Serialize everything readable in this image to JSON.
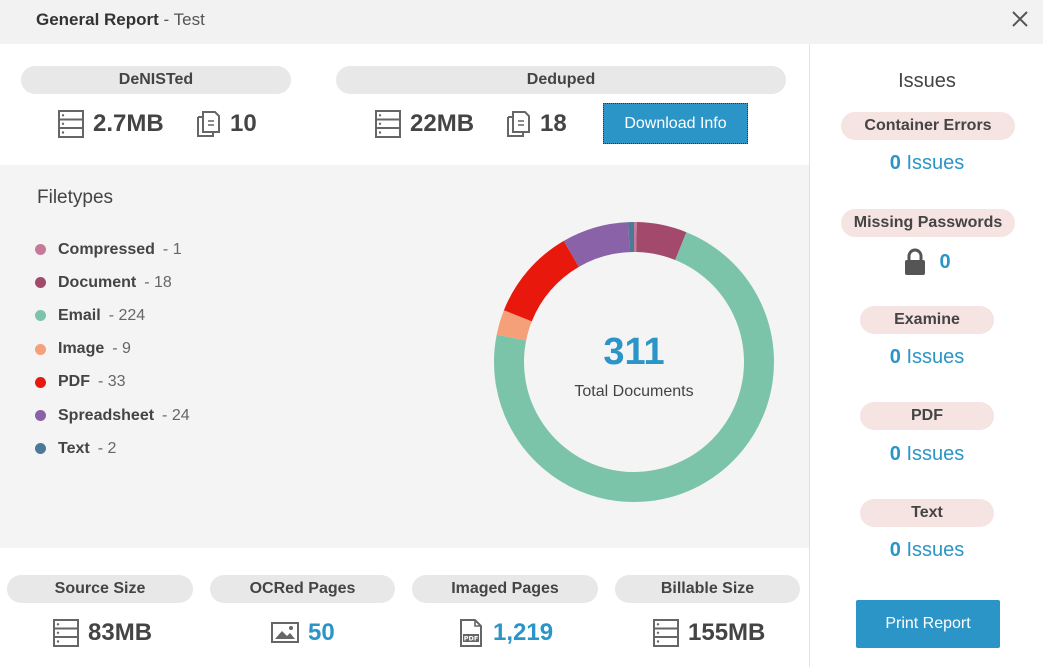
{
  "header": {
    "title": "General Report",
    "subtitle": "- Test"
  },
  "denisted": {
    "label": "DeNISTed",
    "size": "2.7MB",
    "count": "10"
  },
  "deduped": {
    "label": "Deduped",
    "size": "22MB",
    "count": "18"
  },
  "download_button": "Download Info",
  "filetypes": {
    "title": "Filetypes",
    "items": [
      {
        "name": "Compressed",
        "count": "- 1",
        "color": "#c67a9a"
      },
      {
        "name": "Document",
        "count": "- 18",
        "color": "#a34a6c"
      },
      {
        "name": "Email",
        "count": "- 224",
        "color": "#7bc4a9"
      },
      {
        "name": "Image",
        "count": "- 9",
        "color": "#f6a07a"
      },
      {
        "name": "PDF",
        "count": "- 33",
        "color": "#e8190c"
      },
      {
        "name": "Spreadsheet",
        "count": "- 24",
        "color": "#8a62a7"
      },
      {
        "name": "Text",
        "count": "- 2",
        "color": "#4a7a98"
      }
    ]
  },
  "chart_data": {
    "type": "pie",
    "categories": [
      "Compressed",
      "Document",
      "Email",
      "Image",
      "PDF",
      "Spreadsheet",
      "Text"
    ],
    "values": [
      1,
      18,
      224,
      9,
      33,
      24,
      2
    ],
    "colors": [
      "#c67a9a",
      "#a34a6c",
      "#7bc4a9",
      "#f6a07a",
      "#e8190c",
      "#8a62a7",
      "#4a7a98"
    ],
    "total": "311",
    "total_label": "Total Documents"
  },
  "bottom": {
    "source_size": {
      "label": "Source Size",
      "value": "83MB"
    },
    "ocred_pages": {
      "label": "OCRed Pages",
      "value": "50"
    },
    "imaged_pages": {
      "label": "Imaged Pages",
      "value": "1,219"
    },
    "billable_size": {
      "label": "Billable Size",
      "value": "155MB"
    }
  },
  "issues": {
    "title": "Issues",
    "container_errors": {
      "label": "Container Errors",
      "count": "0",
      "suffix": "Issues"
    },
    "missing_passwords": {
      "label": "Missing Passwords",
      "count": "0"
    },
    "examine": {
      "label": "Examine",
      "count": "0",
      "suffix": "Issues"
    },
    "pdf": {
      "label": "PDF",
      "count": "0",
      "suffix": "Issues"
    },
    "text": {
      "label": "Text",
      "count": "0",
      "suffix": "Issues"
    }
  },
  "print_button": "Print Report",
  "icons": {
    "size": "server-icon",
    "count": "documents-icon",
    "ocr": "image-icon",
    "imaged": "pdf-file-icon",
    "lock": "lock-icon",
    "close": "close-icon"
  },
  "colors": {
    "accent": "#2b95c8"
  }
}
